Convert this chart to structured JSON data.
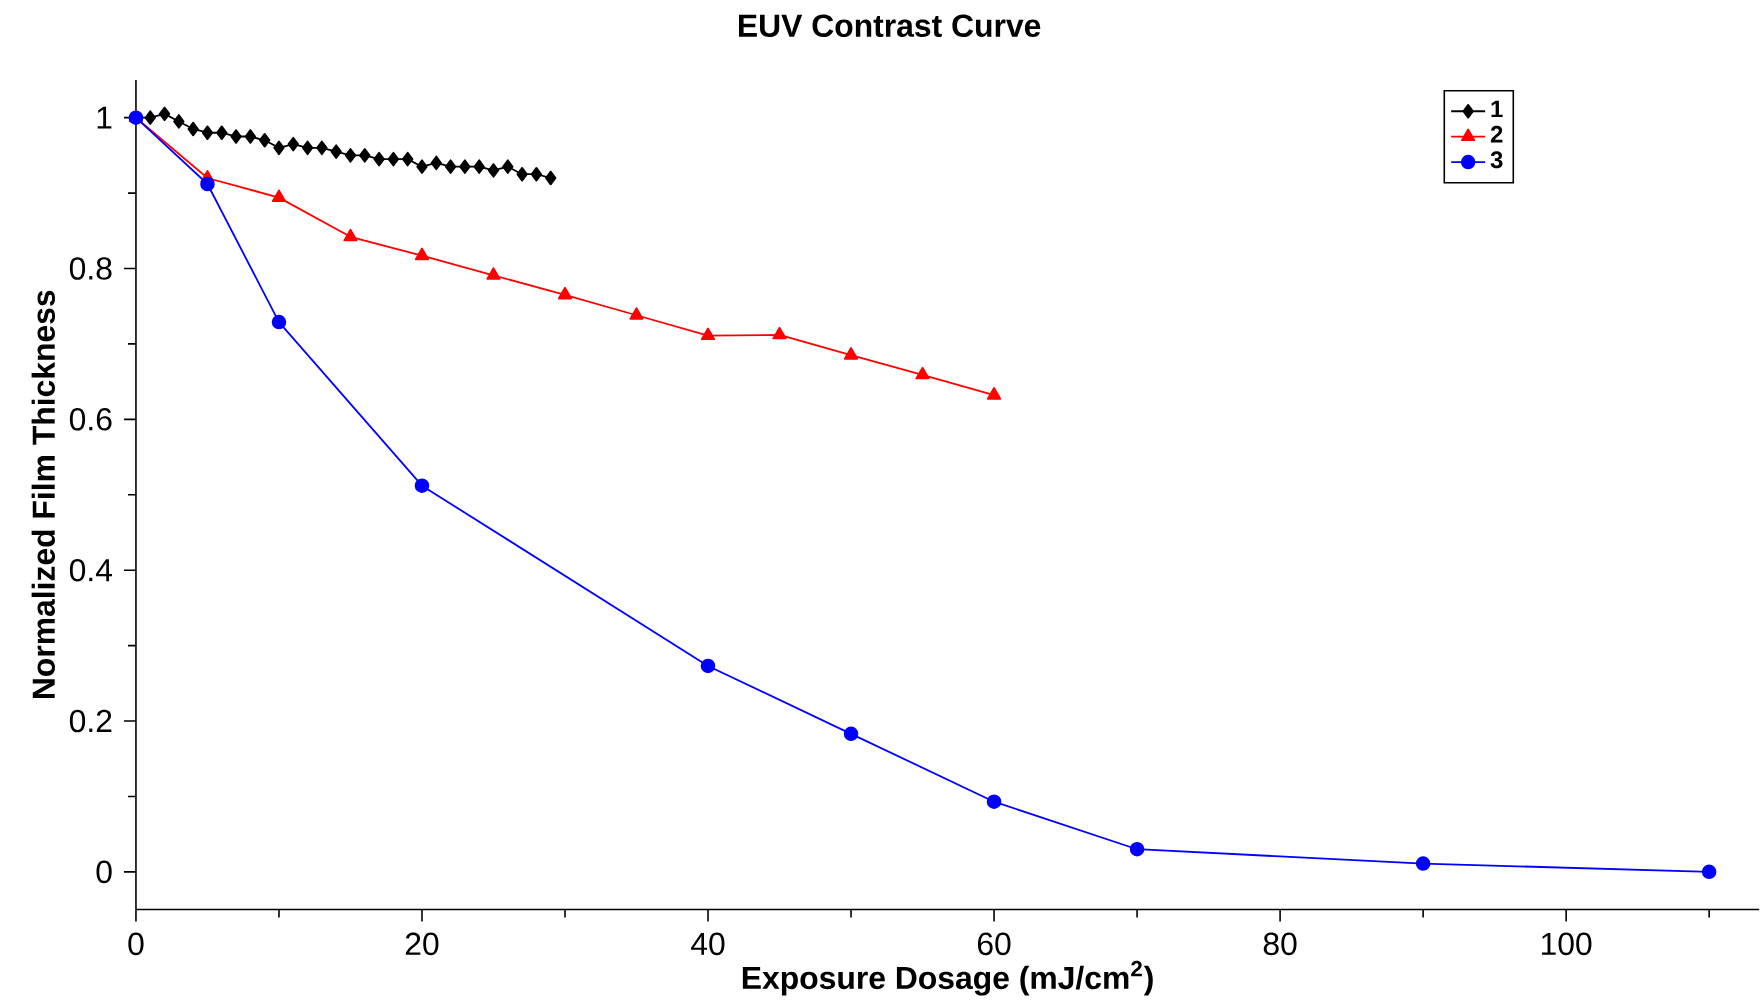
{
  "chart_data": {
    "type": "line",
    "title": "EUV Contrast Curve",
    "xlabel": "Exposure Dosage (mJ/cm$^{2}$)",
    "ylabel": "Normalized Film Thickness",
    "xlim": [
      0,
      113.5
    ],
    "ylim": [
      -0.05,
      1.05
    ],
    "xticks": [
      0,
      {
        "value": 10,
        "label": null
      },
      20,
      {
        "value": 30,
        "label": null
      },
      40,
      {
        "value": 50,
        "label": null
      },
      60,
      {
        "value": 70,
        "label": null
      },
      80,
      {
        "value": 90,
        "label": null
      },
      100,
      {
        "value": 110,
        "label": null
      }
    ],
    "yticks": [
      0,
      {
        "value": 0.1,
        "label": null
      },
      0.2,
      {
        "value": 0.3,
        "label": null
      },
      0.4,
      {
        "value": 0.5,
        "label": null
      },
      0.6,
      {
        "value": 0.7,
        "label": null
      },
      0.8,
      {
        "value": 0.9,
        "label": null
      },
      1
    ],
    "grid": false,
    "legend": "top right",
    "line_style": "solid",
    "series": [
      {
        "name": "1",
        "color": "#000000",
        "marker": "diamond",
        "x": [
          0,
          1,
          2,
          3,
          4,
          5,
          6,
          7,
          8,
          9,
          10,
          11,
          12,
          13,
          14,
          15,
          16,
          17,
          18,
          19,
          20,
          21,
          22,
          23,
          24,
          25,
          26,
          27,
          28,
          29
        ],
        "values": [
          1.0,
          1.0,
          1.005,
          0.995,
          0.985,
          0.98,
          0.98,
          0.975,
          0.975,
          0.97,
          0.96,
          0.965,
          0.96,
          0.96,
          0.955,
          0.95,
          0.95,
          0.945,
          0.945,
          0.945,
          0.935,
          0.94,
          0.935,
          0.935,
          0.935,
          0.93,
          0.935,
          0.925,
          0.925,
          0.92
        ]
      },
      {
        "name": "2",
        "color": "#ff0000",
        "marker": "triangle",
        "x": [
          0,
          5,
          10,
          15,
          20,
          25,
          30,
          35,
          40,
          45,
          50,
          55,
          60
        ],
        "values": [
          1.0,
          0.92,
          0.894,
          0.842,
          0.817,
          0.791,
          0.765,
          0.738,
          0.711,
          0.712,
          0.685,
          0.659,
          0.632
        ]
      },
      {
        "name": "3",
        "color": "#0000ff",
        "marker": "circle",
        "x": [
          0,
          5,
          10,
          20,
          40,
          50,
          60,
          70,
          90,
          110
        ],
        "values": [
          1.0,
          0.912,
          0.729,
          0.512,
          0.273,
          0.183,
          0.093,
          0.03,
          0.011,
          0.0
        ]
      }
    ]
  }
}
